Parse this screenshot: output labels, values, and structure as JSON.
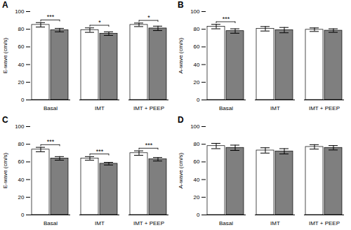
{
  "chart_data": [
    {
      "type": "bar",
      "title": "A",
      "ylabel": "E-wave (cm/s)",
      "categories": [
        "Basal",
        "IMT",
        "IMT + PEEP"
      ],
      "series": [
        {
          "color": "#FFFFFF",
          "values": [
            85,
            79,
            85
          ],
          "errors": [
            2.5,
            2.5,
            2.0
          ]
        },
        {
          "color": "#7F7F7F",
          "values": [
            79,
            75,
            81
          ],
          "errors": [
            2.0,
            2.0,
            2.5
          ]
        }
      ],
      "annotations": [
        {
          "category": "Basal",
          "label": "***"
        },
        {
          "category": "IMT",
          "label": "*"
        },
        {
          "category": "IMT + PEEP",
          "label": "*"
        }
      ],
      "ylim": [
        0,
        100
      ],
      "yticks": [
        0,
        20,
        40,
        60,
        80,
        100
      ],
      "grid": false
    },
    {
      "type": "bar",
      "title": "B",
      "ylabel": "A-wave (cm/s)",
      "categories": [
        "Basal",
        "IMT",
        "IMT + PEEP"
      ],
      "series": [
        {
          "color": "#FFFFFF",
          "values": [
            83,
            80.5,
            79.5
          ],
          "errors": [
            2.5,
            2.5,
            2.0
          ]
        },
        {
          "color": "#7F7F7F",
          "values": [
            78,
            79,
            78.5
          ],
          "errors": [
            2.5,
            3.0,
            2.0
          ]
        }
      ],
      "annotations": [
        {
          "category": "Basal",
          "label": "***"
        }
      ],
      "ylim": [
        0,
        100
      ],
      "yticks": [
        0,
        20,
        40,
        60,
        80,
        100
      ],
      "grid": false
    },
    {
      "type": "bar",
      "title": "C",
      "ylabel": "E-wave (cm/s)",
      "categories": [
        "Basal",
        "IMT",
        "IMT + PEEP"
      ],
      "series": [
        {
          "color": "#FFFFFF",
          "values": [
            74,
            64,
            70
          ],
          "errors": [
            2.5,
            2.0,
            2.5
          ]
        },
        {
          "color": "#7F7F7F",
          "values": [
            64,
            58,
            63
          ],
          "errors": [
            2.0,
            1.5,
            2.0
          ]
        }
      ],
      "annotations": [
        {
          "category": "Basal",
          "label": "***"
        },
        {
          "category": "IMT",
          "label": "***"
        },
        {
          "category": "IMT + PEEP",
          "label": "***"
        }
      ],
      "ylim": [
        0,
        100
      ],
      "yticks": [
        0,
        20,
        40,
        60,
        80,
        100
      ],
      "grid": false
    },
    {
      "type": "bar",
      "title": "D",
      "ylabel": "A-wave (cm/s)",
      "categories": [
        "Basal",
        "IMT",
        "IMT + PEEP"
      ],
      "series": [
        {
          "color": "#FFFFFF",
          "values": [
            78,
            73,
            77
          ],
          "errors": [
            3.0,
            3.0,
            2.5
          ]
        },
        {
          "color": "#7F7F7F",
          "values": [
            76,
            72,
            76
          ],
          "errors": [
            3.0,
            3.0,
            2.5
          ]
        }
      ],
      "annotations": [],
      "ylim": [
        0,
        100
      ],
      "yticks": [
        0,
        20,
        40,
        60,
        80,
        100
      ],
      "grid": false
    }
  ]
}
